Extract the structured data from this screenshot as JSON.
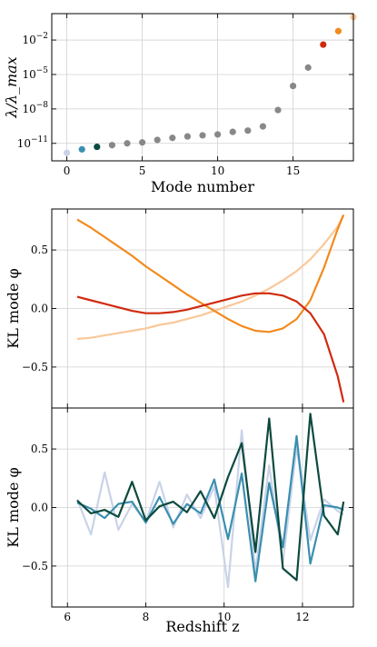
{
  "chart_data": [
    {
      "type": "scatter",
      "xlabel": "Mode number",
      "ylabel": "λ/λ_max",
      "yscale": "log",
      "xlim": [
        -1,
        19
      ],
      "ylim": [
        3e-13,
        2
      ],
      "xticks": [
        0,
        5,
        10,
        15
      ],
      "yticks": [
        {
          "value": 1e-11,
          "label": "10^-11"
        },
        {
          "value": 1e-08,
          "label": "10^-8"
        },
        {
          "value": 1e-05,
          "label": "10^-5"
        },
        {
          "value": 0.01,
          "label": "10^-2"
        }
      ],
      "grid": true,
      "x": [
        0,
        1,
        2,
        3,
        4,
        5,
        6,
        7,
        8,
        9,
        10,
        11,
        12,
        13,
        14,
        15,
        16,
        17,
        18,
        19
      ],
      "values": [
        1.5e-12,
        3e-12,
        5e-12,
        7e-12,
        1e-11,
        1.2e-11,
        2e-11,
        3e-11,
        4e-11,
        5e-11,
        6e-11,
        1e-10,
        1.3e-10,
        3e-10,
        8e-09,
        1e-06,
        4e-05,
        0.004,
        0.06,
        1
      ],
      "colors": [
        "#c9d3e8",
        "#3a8fb0",
        "#0d4a3e",
        "#888888",
        "#888888",
        "#888888",
        "#888888",
        "#888888",
        "#888888",
        "#888888",
        "#888888",
        "#888888",
        "#888888",
        "#888888",
        "#888888",
        "#888888",
        "#888888",
        "#d02a0e",
        "#f28a1e",
        "#fac89a"
      ]
    },
    {
      "type": "line",
      "xlabel": "",
      "ylabel": "KL mode φ",
      "xlim": [
        5.6,
        13.3
      ],
      "ylim": [
        -0.85,
        0.85
      ],
      "yticks": [
        -0.5,
        0.0,
        0.5
      ],
      "grid": true,
      "x": [
        6.25,
        6.6,
        6.95,
        7.3,
        7.65,
        8.0,
        8.35,
        8.7,
        9.05,
        9.4,
        9.75,
        10.1,
        10.45,
        10.8,
        11.15,
        11.5,
        11.85,
        12.2,
        12.55,
        12.9,
        13.05
      ],
      "series": [
        {
          "color": "#fac89a",
          "values": [
            -0.26,
            -0.25,
            -0.23,
            -0.21,
            -0.19,
            -0.17,
            -0.14,
            -0.12,
            -0.09,
            -0.06,
            -0.02,
            0.02,
            0.06,
            0.11,
            0.17,
            0.24,
            0.32,
            0.42,
            0.55,
            0.7,
            0.8
          ]
        },
        {
          "color": "#f28a1e",
          "values": [
            0.76,
            0.69,
            0.61,
            0.53,
            0.45,
            0.36,
            0.28,
            0.2,
            0.12,
            0.05,
            -0.02,
            -0.09,
            -0.15,
            -0.19,
            -0.2,
            -0.17,
            -0.09,
            0.07,
            0.35,
            0.68,
            0.8
          ]
        },
        {
          "color": "#d02a0e",
          "values": [
            0.1,
            0.07,
            0.04,
            0.01,
            -0.02,
            -0.04,
            -0.04,
            -0.03,
            -0.01,
            0.02,
            0.05,
            0.08,
            0.11,
            0.13,
            0.13,
            0.11,
            0.06,
            -0.04,
            -0.22,
            -0.58,
            -0.8
          ]
        }
      ]
    },
    {
      "type": "line",
      "xlabel": "Redshift z",
      "ylabel": "KL mode φ",
      "xlim": [
        5.6,
        13.3
      ],
      "ylim": [
        -0.85,
        0.85
      ],
      "xticks": [
        6,
        8,
        10,
        12
      ],
      "yticks": [
        -0.5,
        0.0,
        0.5
      ],
      "grid": true,
      "x": [
        6.25,
        6.6,
        6.95,
        7.3,
        7.65,
        8.0,
        8.35,
        8.7,
        9.05,
        9.4,
        9.75,
        10.1,
        10.45,
        10.8,
        11.15,
        11.5,
        11.85,
        12.2,
        12.55,
        12.9,
        13.05
      ],
      "series": [
        {
          "color": "#c9d3e8",
          "values": [
            0.07,
            -0.23,
            0.3,
            -0.19,
            0.03,
            -0.12,
            0.22,
            -0.17,
            0.11,
            -0.09,
            0.18,
            -0.68,
            0.66,
            -0.55,
            0.36,
            -0.47,
            0.52,
            -0.28,
            0.07,
            -0.03,
            -0.06
          ]
        },
        {
          "color": "#3a8fb0",
          "values": [
            0.04,
            -0.01,
            -0.09,
            0.03,
            0.05,
            -0.13,
            0.09,
            -0.14,
            0.03,
            -0.05,
            0.24,
            -0.27,
            0.29,
            -0.63,
            0.21,
            -0.34,
            0.61,
            -0.48,
            0.02,
            0.0,
            -0.02
          ]
        },
        {
          "color": "#0d4a3e",
          "values": [
            0.06,
            -0.05,
            -0.02,
            -0.08,
            0.22,
            -0.11,
            0.01,
            0.05,
            -0.04,
            0.14,
            -0.09,
            0.26,
            0.55,
            -0.38,
            0.76,
            -0.52,
            -0.62,
            0.8,
            -0.07,
            -0.23,
            0.05
          ]
        }
      ]
    }
  ]
}
